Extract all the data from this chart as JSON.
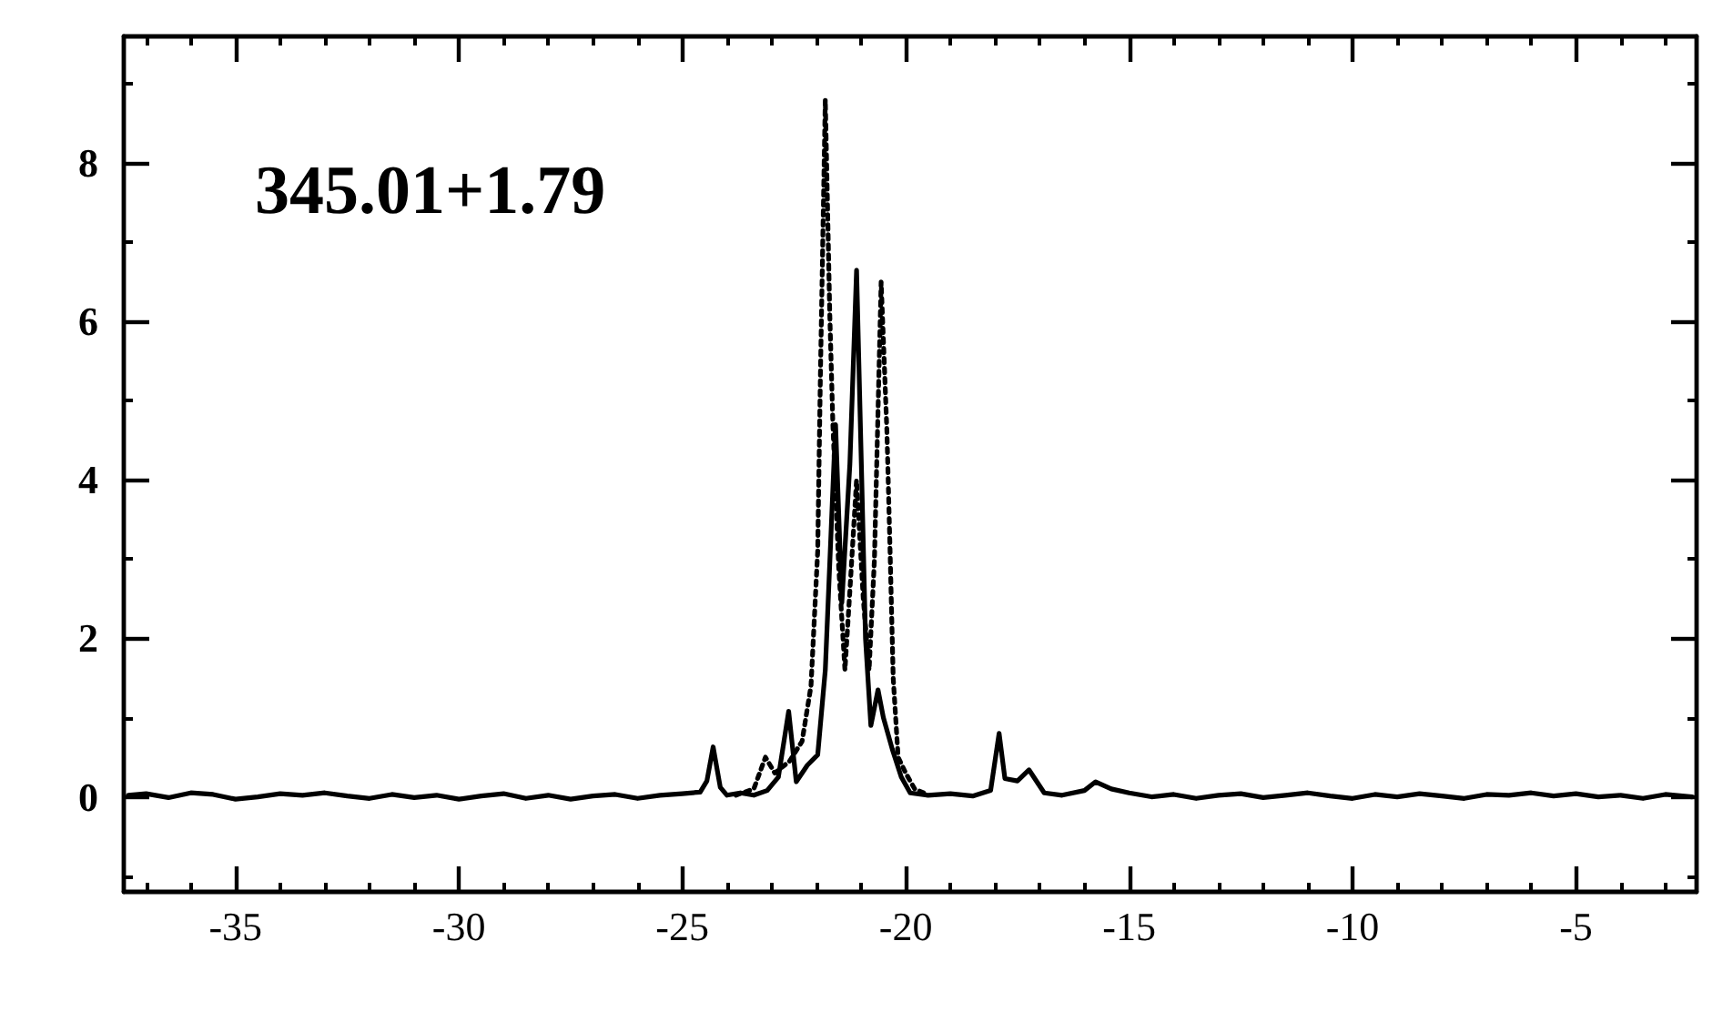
{
  "chart_data": {
    "type": "line",
    "annotations": [
      "345.01+1.79"
    ],
    "xlim": [
      -37.5,
      -2.3
    ],
    "xticks": [
      {
        "value": -37,
        "label": null
      },
      {
        "value": -36,
        "label": null
      },
      -35,
      {
        "value": -34,
        "label": null
      },
      {
        "value": -33,
        "label": null
      },
      {
        "value": -32,
        "label": null
      },
      {
        "value": -31,
        "label": null
      },
      -30,
      {
        "value": -29,
        "label": null
      },
      {
        "value": -28,
        "label": null
      },
      {
        "value": -27,
        "label": null
      },
      {
        "value": -26,
        "label": null
      },
      -25,
      {
        "value": -24,
        "label": null
      },
      {
        "value": -23,
        "label": null
      },
      {
        "value": -22,
        "label": null
      },
      {
        "value": -21,
        "label": null
      },
      -20,
      {
        "value": -19,
        "label": null
      },
      {
        "value": -18,
        "label": null
      },
      {
        "value": -17,
        "label": null
      },
      {
        "value": -16,
        "label": null
      },
      -15,
      {
        "value": -14,
        "label": null
      },
      {
        "value": -13,
        "label": null
      },
      {
        "value": -12,
        "label": null
      },
      {
        "value": -11,
        "label": null
      },
      -10,
      {
        "value": -9,
        "label": null
      },
      {
        "value": -8,
        "label": null
      },
      {
        "value": -7,
        "label": null
      },
      {
        "value": -6,
        "label": null
      },
      -5,
      {
        "value": -4,
        "label": null
      },
      {
        "value": -3,
        "label": null
      }
    ],
    "ylim": [
      -1.2,
      9.6
    ],
    "yticks": [
      {
        "value": -1,
        "label": null
      },
      0,
      {
        "value": 1,
        "label": null
      },
      2,
      {
        "value": 3,
        "label": null
      },
      4,
      {
        "value": 5,
        "label": null
      },
      6,
      {
        "value": 7,
        "label": null
      },
      8,
      {
        "value": 9,
        "label": null
      }
    ],
    "marker": "none",
    "series": [
      {
        "color": "#000000",
        "line_style": "solid",
        "x": [
          -37.4,
          -37.0,
          -36.5,
          -36.0,
          -35.5,
          -35.0,
          -34.5,
          -34.0,
          -33.5,
          -33.0,
          -32.5,
          -32.0,
          -31.5,
          -31.0,
          -30.5,
          -30.0,
          -29.5,
          -29.0,
          -28.5,
          -28.0,
          -27.5,
          -27.0,
          -26.5,
          -26.0,
          -25.5,
          -25.0,
          -24.6,
          -24.45,
          -24.31,
          -24.15,
          -24.0,
          -23.7,
          -23.4,
          -23.1,
          -22.85,
          -22.62,
          -22.45,
          -22.2,
          -21.97,
          -21.8,
          -21.57,
          -21.43,
          -21.25,
          -21.1,
          -20.98,
          -20.9,
          -20.78,
          -20.62,
          -20.5,
          -20.3,
          -20.1,
          -19.9,
          -19.5,
          -19.0,
          -18.5,
          -18.1,
          -17.91,
          -17.78,
          -17.5,
          -17.24,
          -16.9,
          -16.5,
          -16.0,
          -15.75,
          -15.4,
          -15.0,
          -14.5,
          -14.0,
          -13.5,
          -13.0,
          -12.5,
          -12.0,
          -11.5,
          -11.0,
          -10.5,
          -10.0,
          -9.5,
          -9.0,
          -8.5,
          -8.0,
          -7.5,
          -7.0,
          -6.5,
          -6.0,
          -5.5,
          -5.0,
          -4.5,
          -4.0,
          -3.5,
          -3.0,
          -2.4
        ],
        "values": [
          0.02,
          0.04,
          -0.01,
          0.05,
          0.03,
          -0.03,
          0.0,
          0.04,
          0.02,
          0.05,
          0.01,
          -0.02,
          0.03,
          -0.01,
          0.02,
          -0.03,
          0.01,
          0.04,
          -0.02,
          0.02,
          -0.03,
          0.01,
          0.03,
          -0.02,
          0.02,
          0.04,
          0.06,
          0.2,
          0.63,
          0.12,
          0.02,
          0.05,
          0.02,
          0.08,
          0.25,
          1.08,
          0.19,
          0.4,
          0.53,
          1.6,
          4.7,
          2.45,
          4.2,
          6.65,
          3.9,
          2.0,
          0.9,
          1.35,
          1.0,
          0.6,
          0.25,
          0.05,
          0.02,
          0.04,
          0.01,
          0.08,
          0.8,
          0.23,
          0.2,
          0.34,
          0.05,
          0.02,
          0.08,
          0.19,
          0.1,
          0.05,
          0.0,
          0.03,
          -0.02,
          0.02,
          0.04,
          -0.01,
          0.02,
          0.05,
          0.01,
          -0.02,
          0.03,
          0.0,
          0.04,
          0.01,
          -0.02,
          0.03,
          0.02,
          0.05,
          0.01,
          0.04,
          0.0,
          0.02,
          -0.02,
          0.03,
          0.0
        ]
      },
      {
        "color": "#000000",
        "line_style": "dotted",
        "x": [
          -23.8,
          -23.4,
          -23.14,
          -22.93,
          -22.6,
          -22.32,
          -22.12,
          -21.97,
          -21.91,
          -21.8,
          -21.7,
          -21.63,
          -21.5,
          -21.36,
          -21.25,
          -21.1,
          -20.95,
          -20.82,
          -20.7,
          -20.55,
          -20.42,
          -20.35,
          -20.28,
          -20.17,
          -20.0,
          -19.8,
          -19.6
        ],
        "values": [
          0.02,
          0.1,
          0.5,
          0.3,
          0.45,
          0.7,
          1.4,
          3.1,
          5.3,
          8.8,
          6.1,
          4.7,
          2.9,
          1.6,
          2.6,
          4.0,
          2.5,
          1.6,
          3.0,
          6.5,
          4.6,
          3.1,
          1.5,
          0.5,
          0.3,
          0.1,
          0.05
        ]
      }
    ]
  }
}
